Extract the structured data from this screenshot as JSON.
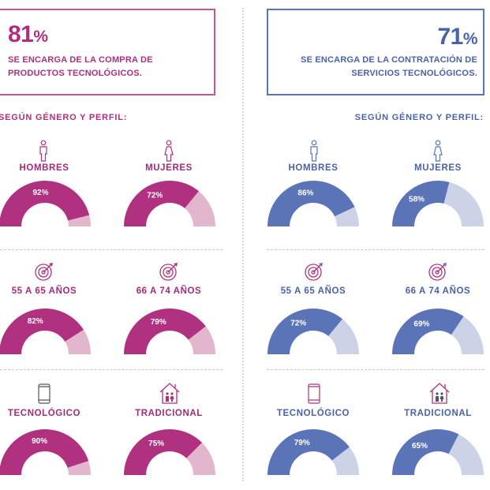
{
  "left": {
    "stat_value": "81",
    "stat_symbol": "%",
    "caption_line1": "SE ENCARGA DE LA COMPRA DE",
    "caption_line2": "PRODUCTOS TECNOLÓGICOS.",
    "section_title": "SEGÚN GÉNERO Y PERFIL:"
  },
  "right": {
    "stat_value": "71",
    "stat_symbol": "%",
    "caption_line1": "SE ENCARGA DE LA CONTRATACIÓN DE",
    "caption_line2": "SERVICIOS TECNOLÓGICOS.",
    "section_title": "SEGÚN GÉNERO Y PERFIL:"
  },
  "labels": {
    "hombres": "HOMBRES",
    "mujeres": "MUJERES",
    "age1": "55 A 65 AÑOS",
    "age2": "66 A 74 AÑOS",
    "tecnologico": "TECNOLÓGICO",
    "tradicional": "TRADICIONAL"
  },
  "colors": {
    "magenta": "#b0317f",
    "magenta_light": "#e2b6cd",
    "blue": "#5b74b8",
    "blue_light": "#ccd3e6"
  },
  "icons": {
    "hombres": "man-icon",
    "mujeres": "woman-icon",
    "age": "target-icon",
    "tecnologico": "smartphone-icon",
    "tradicional": "house-family-icon"
  },
  "chart_data": [
    {
      "type": "gauge",
      "title": "SE ENCARGA DE LA COMPRA DE PRODUCTOS TECNOLÓGICOS.",
      "categories": [
        "HOMBRES",
        "MUJERES",
        "55 A 65 AÑOS",
        "66 A 74 AÑOS",
        "TECNOLÓGICO",
        "TRADICIONAL"
      ],
      "values": [
        92,
        72,
        82,
        79,
        90,
        75
      ],
      "value_labels": [
        "92%",
        "72%",
        "82%",
        "79%",
        "90%",
        "75%"
      ],
      "ylim": [
        0,
        100
      ]
    },
    {
      "type": "gauge",
      "title": "SE ENCARGA DE LA CONTRATACIÓN DE SERVICIOS TECNOLÓGICOS.",
      "categories": [
        "HOMBRES",
        "MUJERES",
        "55 A 65 AÑOS",
        "66 A 74 AÑOS",
        "TECNOLÓGICO",
        "TRADICIONAL"
      ],
      "values": [
        86,
        58,
        72,
        69,
        79,
        65
      ],
      "value_labels": [
        "86%",
        "58%",
        "72%",
        "69%",
        "79%",
        "65%"
      ],
      "ylim": [
        0,
        100
      ]
    }
  ]
}
